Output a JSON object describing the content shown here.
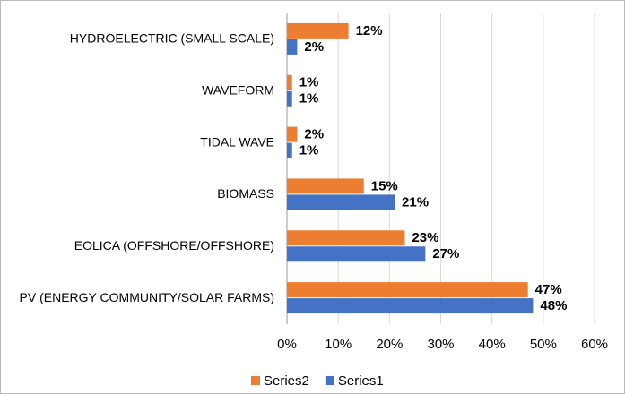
{
  "chart_data": {
    "type": "hbar",
    "categories": [
      "HYDROELECTRIC (SMALL SCALE)",
      "WAVEFORM",
      "TIDAL WAVE",
      "BIOMASS",
      "EOLICA (OFFSHORE/OFFSHORE)",
      "PV (ENERGY COMMUNITY/SOLAR FARMS)"
    ],
    "series": [
      {
        "name": "Series2",
        "color": "#ed7d31",
        "values": [
          12,
          1,
          2,
          15,
          23,
          47
        ],
        "value_labels": [
          "12%",
          "1%",
          "2%",
          "15%",
          "23%",
          "47%"
        ]
      },
      {
        "name": "Series1",
        "color": "#4472c4",
        "values": [
          2,
          1,
          1,
          21,
          27,
          48
        ],
        "value_labels": [
          "2%",
          "1%",
          "1%",
          "21%",
          "27%",
          "48%"
        ]
      }
    ],
    "xlim": [
      0,
      60
    ],
    "xticks": [
      {
        "value": 0,
        "label": "0%"
      },
      {
        "value": 10,
        "label": "10%"
      },
      {
        "value": 20,
        "label": "20%"
      },
      {
        "value": 30,
        "label": "30%"
      },
      {
        "value": 40,
        "label": "40%"
      },
      {
        "value": 50,
        "label": "50%"
      },
      {
        "value": 60,
        "label": "60%"
      }
    ],
    "grid": true,
    "legend": "bottom"
  }
}
